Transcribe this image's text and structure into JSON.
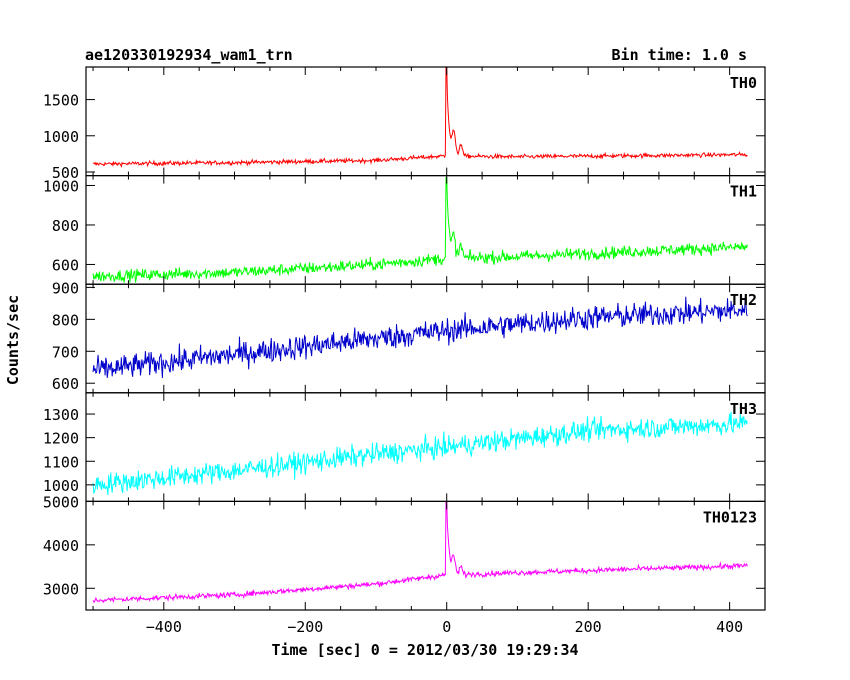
{
  "header": {
    "title": "ae120330192934_wam1_trn",
    "bin_time": "Bin time: 1.0 s"
  },
  "chart_data": {
    "type": "line",
    "xlabel": "Time [sec] 0 = 2012/03/30 19:29:34",
    "ylabel": "Counts/sec",
    "xlim": [
      -510,
      450
    ],
    "xticks": [
      -400,
      -200,
      0,
      200,
      400
    ],
    "panels": [
      {
        "name": "TH0",
        "color": "#ff0000",
        "ylim": [
          450,
          1950
        ],
        "yticks": [
          500,
          1000,
          1500
        ],
        "baseline": [
          [
            -500,
            610
          ],
          [
            -300,
            630
          ],
          [
            -100,
            660
          ],
          [
            -5,
            720
          ],
          [
            100,
            710
          ],
          [
            425,
            740
          ]
        ],
        "noise": 28,
        "peak": {
          "x": 0,
          "y": 1950
        },
        "secondary": [
          {
            "x": 10,
            "y": 1220
          },
          {
            "x": 20,
            "y": 1000
          }
        ]
      },
      {
        "name": "TH1",
        "color": "#00ff00",
        "ylim": [
          500,
          1050
        ],
        "yticks": [
          600,
          800,
          1000
        ],
        "baseline": [
          [
            -500,
            540
          ],
          [
            -300,
            560
          ],
          [
            -100,
            600
          ],
          [
            -5,
            630
          ],
          [
            100,
            640
          ],
          [
            425,
            690
          ]
        ],
        "noise": 30,
        "peak": {
          "x": 0,
          "y": 1040
        },
        "secondary": [
          {
            "x": 10,
            "y": 800
          },
          {
            "x": 20,
            "y": 740
          }
        ]
      },
      {
        "name": "TH2",
        "color": "#0000cc",
        "ylim": [
          570,
          910
        ],
        "yticks": [
          600,
          700,
          800,
          900
        ],
        "baseline": [
          [
            -500,
            640
          ],
          [
            -300,
            690
          ],
          [
            -100,
            740
          ],
          [
            0,
            765
          ],
          [
            200,
            805
          ],
          [
            425,
            830
          ]
        ],
        "noise": 38,
        "peak": null,
        "secondary": []
      },
      {
        "name": "TH3",
        "color": "#00ffff",
        "ylim": [
          930,
          1390
        ],
        "yticks": [
          1000,
          1100,
          1200,
          1300
        ],
        "baseline": [
          [
            -500,
            1000
          ],
          [
            -300,
            1060
          ],
          [
            -100,
            1130
          ],
          [
            0,
            1160
          ],
          [
            200,
            1230
          ],
          [
            425,
            1260
          ]
        ],
        "noise": 45,
        "peak": null,
        "secondary": []
      },
      {
        "name": "TH0123",
        "color": "#ff00ff",
        "ylim": [
          2500,
          5000
        ],
        "yticks": [
          3000,
          4000,
          5000
        ],
        "baseline": [
          [
            -500,
            2720
          ],
          [
            -300,
            2850
          ],
          [
            -100,
            3100
          ],
          [
            -5,
            3300
          ],
          [
            100,
            3360
          ],
          [
            425,
            3520
          ]
        ],
        "noise": 60,
        "peak": {
          "x": 0,
          "y": 5000
        },
        "secondary": [
          {
            "x": 10,
            "y": 3900
          },
          {
            "x": 20,
            "y": 3600
          }
        ]
      }
    ]
  }
}
